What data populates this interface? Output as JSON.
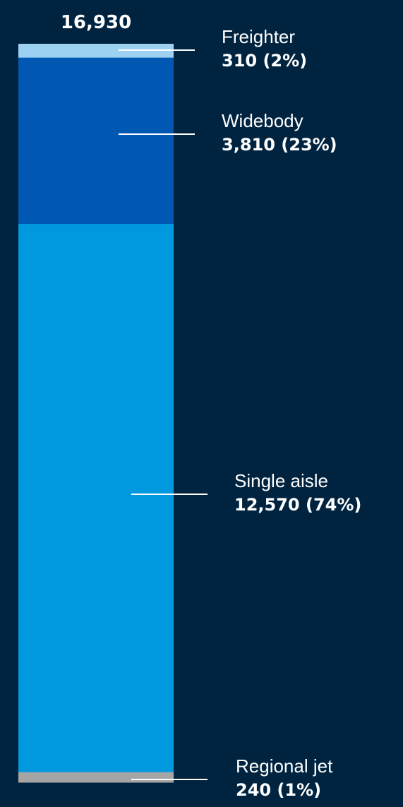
{
  "chart_data": {
    "type": "bar",
    "stacked": true,
    "total_label": "16,930",
    "total": 16930,
    "segments": [
      {
        "name": "Regional jet",
        "value": 240,
        "value_label": "240 (1%)",
        "color": "#a5a5a5"
      },
      {
        "name": "Single aisle",
        "value": 12570,
        "value_label": "12,570 (74%)",
        "color": "#0099dd"
      },
      {
        "name": "Widebody",
        "value": 3810,
        "value_label": "3,810 (23%)",
        "color": "#0058b3"
      },
      {
        "name": "Freighter",
        "value": 310,
        "value_label": "310 (2%)",
        "color": "#9dd1f1"
      }
    ],
    "background": "#002440",
    "leader_color": "#ffffff"
  }
}
